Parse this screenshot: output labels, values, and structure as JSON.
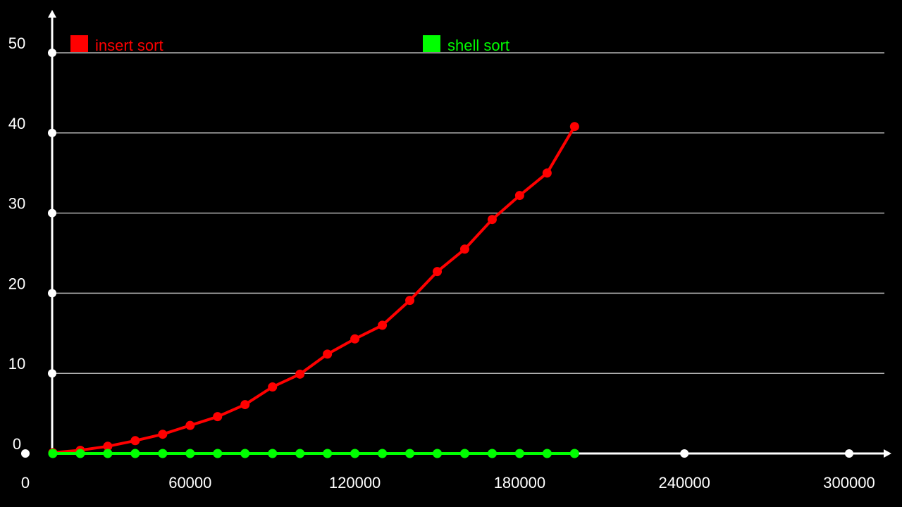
{
  "chart_data": {
    "type": "line",
    "x_ticks": [
      0,
      60000,
      120000,
      180000,
      240000,
      300000
    ],
    "y_ticks": [
      0,
      10,
      20,
      30,
      40,
      50
    ],
    "xlim": [
      0,
      300000
    ],
    "ylim": [
      0,
      50
    ],
    "grid": "horizontal",
    "legend": "top",
    "series": [
      {
        "name": "insert sort",
        "color": "#ff0000",
        "x": [
          10000,
          20000,
          30000,
          40000,
          50000,
          60000,
          70000,
          80000,
          90000,
          100000,
          110000,
          120000,
          130000,
          140000,
          150000,
          160000,
          170000,
          180000,
          190000,
          200000
        ],
        "y": [
          0.1,
          0.4,
          0.9,
          1.6,
          2.4,
          3.5,
          4.6,
          6.1,
          8.3,
          9.9,
          12.4,
          14.3,
          16.0,
          19.1,
          22.7,
          25.5,
          29.2,
          32.2,
          35.0,
          40.8
        ]
      },
      {
        "name": "shell sort",
        "color": "#00ff00",
        "x": [
          10000,
          20000,
          30000,
          40000,
          50000,
          60000,
          70000,
          80000,
          90000,
          100000,
          110000,
          120000,
          130000,
          140000,
          150000,
          160000,
          170000,
          180000,
          190000,
          200000
        ],
        "y": [
          0,
          0,
          0,
          0,
          0,
          0,
          0,
          0,
          0,
          0,
          0,
          0,
          0,
          0,
          0,
          0,
          0,
          0,
          0,
          0
        ]
      }
    ]
  }
}
